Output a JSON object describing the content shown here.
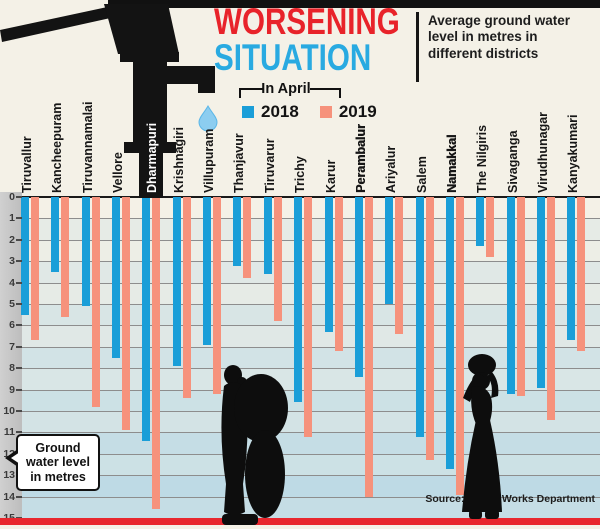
{
  "header": {
    "title_line1": "WORSENING",
    "title_line2": "SITUATION",
    "subtitle": "Average ground water level in metres in different districts"
  },
  "legend": {
    "title": "In April",
    "series1": "2018",
    "series2": "2019"
  },
  "axis_note": "Ground water level in metres",
  "source": "Source: Public Works Department",
  "icons": {
    "hand_pump_icon": "black hand-pump silhouette",
    "water_drop_icon": "light blue water drop",
    "person_with_sack_icon": "silhouette of person carrying sack",
    "woman_with_pot_icon": "silhouette of woman carrying pot on head"
  },
  "colors": {
    "bar_2018": "#1a9ed8",
    "bar_2019": "#f6927c",
    "title_red": "#e8232a",
    "title_blue": "#29aae1",
    "bottom_line": "#e8272e",
    "water_drop": "#8ccdf0",
    "silhouette": "#0d0d0d"
  },
  "chart_data": {
    "type": "bar",
    "title": "Worsening Situation",
    "subtitle": "Average ground water level in metres in different districts",
    "categories": [
      "Tiruvallur",
      "Kancheepuram",
      "Tiruvannamalai",
      "Vellore",
      "Dharmapuri",
      "Krishnagiri",
      "Villupuram",
      "Thanjavur",
      "Tiruvarur",
      "Trichy",
      "Karur",
      "Perambalur",
      "Ariyalur",
      "Salem",
      "Namakkal",
      "The Nilgiris",
      "Sivaganga",
      "Virudhunagar",
      "Kanyakumari"
    ],
    "series": [
      {
        "name": "2018",
        "color": "#1a9ed8",
        "values": [
          5.5,
          3.5,
          5.1,
          7.5,
          11.4,
          7.9,
          6.9,
          3.2,
          3.6,
          9.6,
          6.3,
          8.4,
          5.0,
          11.2,
          12.7,
          2.3,
          9.2,
          8.9,
          6.7
        ]
      },
      {
        "name": "2019",
        "color": "#f6927c",
        "values": [
          6.7,
          5.6,
          9.8,
          10.9,
          14.6,
          9.4,
          9.2,
          3.8,
          5.8,
          11.2,
          7.2,
          14.0,
          6.4,
          12.3,
          13.9,
          2.8,
          9.3,
          10.4,
          7.2
        ]
      }
    ],
    "ylabel": "Ground water level in metres",
    "ylim": [
      0,
      15
    ],
    "y_ticks": [
      0,
      1,
      2,
      3,
      4,
      5,
      6,
      7,
      8,
      9,
      10,
      11,
      12,
      13,
      14,
      15
    ],
    "y_inverted": true,
    "grid": true,
    "legend_position": "top",
    "bold_categories": [
      "Perambalur",
      "Namakkal"
    ],
    "highlight_category": "Dharmapuri"
  }
}
